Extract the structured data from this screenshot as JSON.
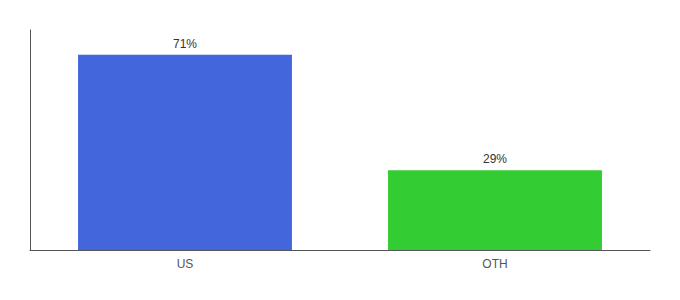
{
  "chart_data": {
    "type": "bar",
    "categories": [
      "US",
      "OTH"
    ],
    "values": [
      71,
      29
    ],
    "value_labels": [
      "71%",
      "29%"
    ],
    "colors": [
      "#4466dd",
      "#33cc33"
    ],
    "ylim": [
      0,
      80
    ],
    "grid": false,
    "data_labels": true,
    "tick_labels": "x"
  }
}
